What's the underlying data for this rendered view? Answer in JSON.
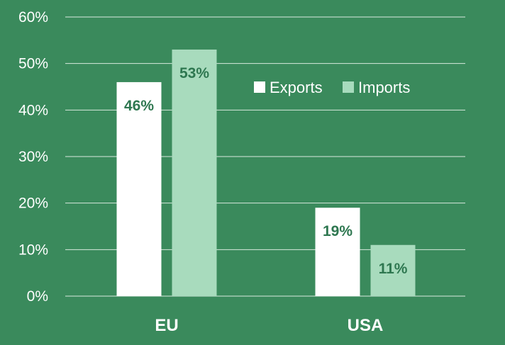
{
  "colors": {
    "background": "#3a8a5c",
    "exports": "#ffffff",
    "imports": "#a8dbbd",
    "gridline": "#d9eadf",
    "data_label": "#2e7750"
  },
  "chart_data": {
    "type": "bar",
    "categories": [
      "EU",
      "USA"
    ],
    "series": [
      {
        "name": "Exports",
        "values": [
          46,
          19
        ],
        "labels": [
          "46%",
          "19%"
        ]
      },
      {
        "name": "Imports",
        "values": [
          53,
          11
        ],
        "labels": [
          "53%",
          "11%"
        ]
      }
    ],
    "ylim": [
      0,
      60
    ],
    "yticks": [
      0,
      10,
      20,
      30,
      40,
      50,
      60
    ],
    "ytick_labels": [
      "0%",
      "10%",
      "20%",
      "30%",
      "40%",
      "50%",
      "60%"
    ],
    "grid": true,
    "legend_position": "top-right",
    "xlabel": "",
    "ylabel": ""
  }
}
